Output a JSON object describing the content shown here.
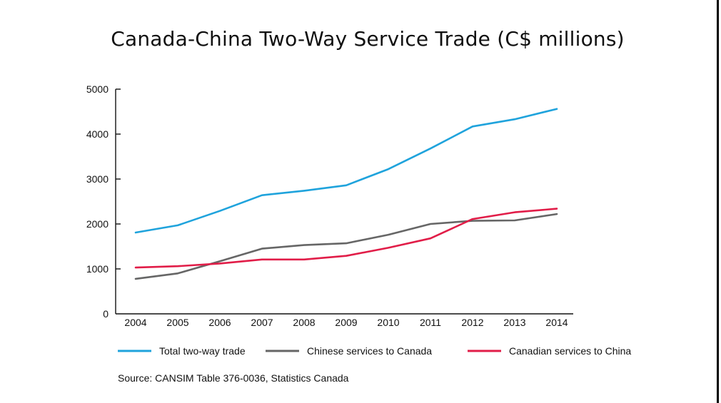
{
  "chart_data": {
    "type": "line",
    "title": "Canada-China Two-Way Service Trade (C$ millions)",
    "xlabel": "",
    "ylabel": "",
    "x": [
      2004,
      2005,
      2006,
      2007,
      2008,
      2009,
      2010,
      2011,
      2012,
      2013,
      2014
    ],
    "ylim": [
      0,
      5000
    ],
    "yticks": [
      0,
      1000,
      2000,
      3000,
      4000,
      5000
    ],
    "grid": false,
    "legend_position": "bottom",
    "series": [
      {
        "name": "Total two-way trade",
        "color": "#1fa3dc",
        "values": [
          1810,
          1970,
          2290,
          2640,
          2740,
          2860,
          3220,
          3680,
          4170,
          4330,
          4560
        ]
      },
      {
        "name": "Chinese services to Canada",
        "color": "#666666",
        "values": [
          780,
          900,
          1170,
          1450,
          1530,
          1570,
          1760,
          2000,
          2070,
          2080,
          2220
        ]
      },
      {
        "name": "Canadian services to China",
        "color": "#e11d48",
        "values": [
          1030,
          1060,
          1120,
          1210,
          1210,
          1290,
          1470,
          1680,
          2110,
          2260,
          2340
        ]
      }
    ],
    "source": "Source: CANSIM Table 376-0036, Statistics Canada"
  }
}
